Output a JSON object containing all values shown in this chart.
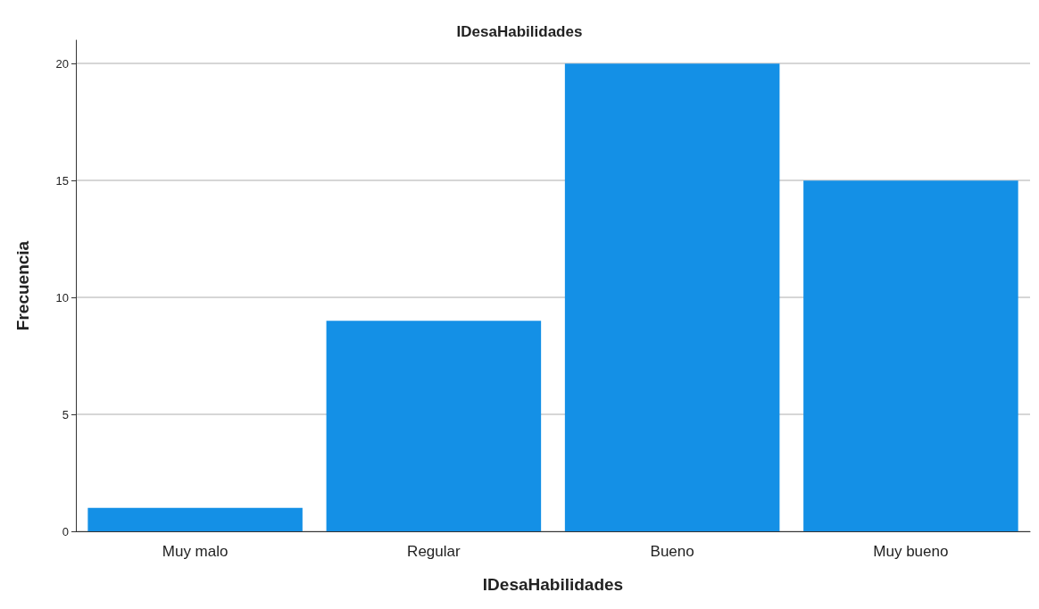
{
  "chart_data": {
    "type": "bar",
    "title": "IDesaHabilidades",
    "xlabel": "IDesaHabilidades",
    "ylabel": "Frecuencia",
    "categories": [
      "Muy malo",
      "Regular",
      "Bueno",
      "Muy bueno"
    ],
    "values": [
      1,
      9,
      20,
      15
    ],
    "color": "#1490e6",
    "ylim": [
      0,
      21
    ],
    "yticks": [
      0,
      5,
      10,
      15,
      20
    ],
    "grid": "y"
  }
}
